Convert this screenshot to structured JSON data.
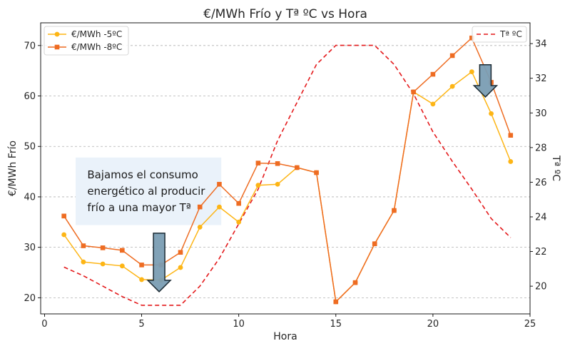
{
  "chart_data": {
    "type": "line",
    "title": "€/MWh Frío y Tª ºC vs Hora",
    "xlabel": "Hora",
    "ylabel": "€/MWh Frío",
    "y2label": "Tª ºC",
    "xlim": [
      -0.2,
      25.0
    ],
    "ylim": [
      16.8,
      74.5
    ],
    "y2lim": [
      18.4,
      35.2
    ],
    "xticks": [
      "0",
      "5",
      "10",
      "15",
      "20",
      "25"
    ],
    "yticks": [
      "20",
      "30",
      "40",
      "50",
      "60",
      "70"
    ],
    "y2ticks": [
      "20",
      "22",
      "24",
      "26",
      "28",
      "30",
      "32",
      "34"
    ],
    "grid": "horizontal",
    "legend_left": "top-left",
    "legend_right": "top-right",
    "colors": {
      "s1": "#fdb515",
      "s2": "#ee6c22",
      "temp": "#e41a1c",
      "arrow": "#7a9db3",
      "arrow_edge": "#1b2a33",
      "note_bg": "#eaf2fa"
    },
    "series": [
      {
        "name": "€/MWh -5ºC",
        "axis": "left",
        "x": [
          1,
          2,
          3,
          4,
          5,
          6,
          7,
          8,
          9,
          10,
          11,
          12,
          13,
          14,
          15,
          16,
          17,
          18,
          19,
          20,
          21,
          22,
          23,
          24
        ],
        "values": [
          32.5,
          27.1,
          26.7,
          26.3,
          23.6,
          23.5,
          26.0,
          34.0,
          38.0,
          35.0,
          42.3,
          42.5,
          45.8,
          44.8,
          19.2,
          23.0,
          30.7,
          37.3,
          60.8,
          58.4,
          61.9,
          64.8,
          56.5,
          47.0
        ]
      },
      {
        "name": "€/MWh -8ºC",
        "axis": "left",
        "x": [
          1,
          2,
          3,
          4,
          5,
          6,
          7,
          8,
          9,
          10,
          11,
          12,
          13,
          14,
          15,
          16,
          17,
          18,
          19,
          20,
          21,
          22,
          23,
          24
        ],
        "values": [
          36.2,
          30.3,
          29.9,
          29.4,
          26.5,
          26.5,
          29.0,
          38.0,
          42.5,
          38.7,
          46.7,
          46.6,
          45.8,
          44.8,
          19.2,
          23.0,
          30.7,
          37.3,
          60.8,
          64.3,
          68.0,
          71.5,
          62.7,
          52.2
        ]
      },
      {
        "name": "Tª ºC",
        "axis": "right",
        "dashed": true,
        "x": [
          1,
          2,
          3,
          4,
          5,
          6,
          7,
          8,
          9,
          10,
          11,
          12,
          13,
          14,
          15,
          16,
          17,
          18,
          19,
          20,
          21,
          22,
          23,
          24
        ],
        "values": [
          21.1,
          20.6,
          20.0,
          19.4,
          18.9,
          18.9,
          18.9,
          20.0,
          21.6,
          23.6,
          25.6,
          28.4,
          30.6,
          32.8,
          33.9,
          33.9,
          33.9,
          32.8,
          31.1,
          28.9,
          27.2,
          25.6,
          23.9,
          22.8
        ]
      }
    ],
    "annotations": [
      {
        "lines": [
          "Bajamos el consumo",
          "energético al producir",
          "frío a una mayor Tª"
        ]
      }
    ],
    "arrows": [
      {
        "x": 5.9,
        "y_top": 32.8,
        "y_bottom": 21.2
      },
      {
        "x": 22.7,
        "y_top": 66.2,
        "y_bottom": 59.8
      }
    ]
  }
}
